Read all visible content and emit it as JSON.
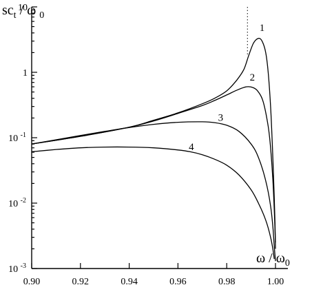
{
  "chart_data": {
    "type": "line",
    "title": "",
    "xlabel": {
      "main": "ω / ω",
      "sub": "0"
    },
    "ylabel": {
      "a": "sc",
      "b": "t",
      "c": " / ω ",
      "d": "0"
    },
    "xlim": [
      0.9,
      1.005
    ],
    "ylim": [
      0.001,
      10
    ],
    "yscale": "log",
    "grid": false,
    "x_ticks": [
      {
        "value": 0.9,
        "label": "0.90"
      },
      {
        "value": 0.92,
        "label": "0.92"
      },
      {
        "value": 0.94,
        "label": "0.94"
      },
      {
        "value": 0.96,
        "label": "0.96"
      },
      {
        "value": 0.98,
        "label": "0.98"
      },
      {
        "value": 1.0,
        "label": "1.00"
      }
    ],
    "y_ticks": [
      {
        "value": 10,
        "base": "10",
        "exp": ""
      },
      {
        "value": 1,
        "base": "1",
        "exp": ""
      },
      {
        "value": 0.1,
        "base": "10",
        "exp": "-1"
      },
      {
        "value": 0.01,
        "base": "10",
        "exp": "-2"
      },
      {
        "value": 0.001,
        "base": "10",
        "exp": "-3"
      }
    ],
    "reference_line_x": 0.9885,
    "series": [
      {
        "label": "1",
        "label_at": [
          0.9945,
          4.3
        ],
        "x": [
          0.9,
          0.92,
          0.94,
          0.95,
          0.96,
          0.97,
          0.975,
          0.98,
          0.984,
          0.987,
          0.989,
          0.991,
          0.993,
          0.9945,
          0.996,
          0.997,
          0.998,
          0.9987,
          0.9993,
          0.9998,
          1.0
        ],
        "y": [
          0.08,
          0.105,
          0.145,
          0.185,
          0.24,
          0.33,
          0.4,
          0.52,
          0.75,
          1.1,
          1.8,
          2.8,
          3.3,
          3.0,
          2.0,
          1.0,
          0.3,
          0.08,
          0.02,
          0.005,
          0.002
        ]
      },
      {
        "label": "2",
        "label_at": [
          0.9905,
          0.75
        ],
        "x": [
          0.9,
          0.92,
          0.94,
          0.95,
          0.96,
          0.97,
          0.975,
          0.98,
          0.984,
          0.988,
          0.991,
          0.993,
          0.995,
          0.997,
          0.998,
          0.999,
          0.9995,
          1.0
        ],
        "y": [
          0.08,
          0.105,
          0.145,
          0.18,
          0.235,
          0.31,
          0.37,
          0.45,
          0.53,
          0.6,
          0.58,
          0.5,
          0.35,
          0.15,
          0.07,
          0.02,
          0.008,
          0.0025
        ]
      },
      {
        "label": "3",
        "label_at": [
          0.9775,
          0.18
        ],
        "x": [
          0.9,
          0.91,
          0.92,
          0.93,
          0.94,
          0.95,
          0.96,
          0.97,
          0.975,
          0.98,
          0.985,
          0.99,
          0.993,
          0.996,
          0.998,
          0.999,
          0.9995,
          1.0
        ],
        "y": [
          0.08,
          0.093,
          0.108,
          0.125,
          0.143,
          0.16,
          0.172,
          0.175,
          0.17,
          0.155,
          0.125,
          0.08,
          0.05,
          0.022,
          0.009,
          0.004,
          0.0022,
          0.0013
        ]
      },
      {
        "label": "4",
        "label_at": [
          0.9655,
          0.065
        ],
        "x": [
          0.9,
          0.91,
          0.92,
          0.93,
          0.94,
          0.95,
          0.96,
          0.965,
          0.97,
          0.975,
          0.98,
          0.985,
          0.99,
          0.993,
          0.996,
          0.998,
          0.999,
          0.9995
        ],
        "y": [
          0.061,
          0.066,
          0.07,
          0.072,
          0.072,
          0.07,
          0.065,
          0.061,
          0.055,
          0.047,
          0.038,
          0.027,
          0.016,
          0.01,
          0.0055,
          0.003,
          0.0019,
          0.0014
        ]
      }
    ]
  }
}
